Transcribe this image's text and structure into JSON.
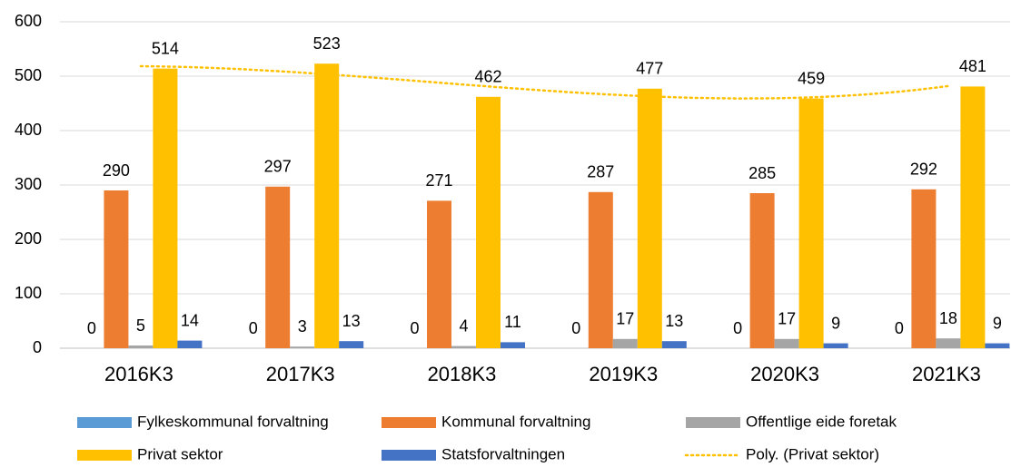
{
  "chart_data": {
    "type": "bar",
    "categories": [
      "2016K3",
      "2017K3",
      "2018K3",
      "2019K3",
      "2020K3",
      "2021K3"
    ],
    "series": [
      {
        "name": "Fylkeskommunal forvaltning",
        "color": "#5b9bd5",
        "values": [
          0,
          0,
          0,
          0,
          0,
          0
        ]
      },
      {
        "name": "Kommunal forvaltning",
        "color": "#ed7d31",
        "values": [
          290,
          297,
          271,
          287,
          285,
          292
        ]
      },
      {
        "name": "Offentlige eide foretak",
        "color": "#a5a5a5",
        "values": [
          5,
          3,
          4,
          17,
          17,
          18
        ]
      },
      {
        "name": "Privat sektor",
        "color": "#ffc000",
        "values": [
          514,
          523,
          462,
          477,
          459,
          481
        ]
      },
      {
        "name": "Statsforvaltningen",
        "color": "#4472c4",
        "values": [
          14,
          13,
          11,
          13,
          9,
          9
        ]
      }
    ],
    "trendline": {
      "name": "Poly. (Privat sektor)",
      "series": 3,
      "order": 3,
      "color": "#ffc000",
      "style": "dotted"
    },
    "ylim": [
      0,
      600
    ],
    "yticks": [
      0,
      100,
      200,
      300,
      400,
      500,
      600
    ],
    "grid": true
  }
}
